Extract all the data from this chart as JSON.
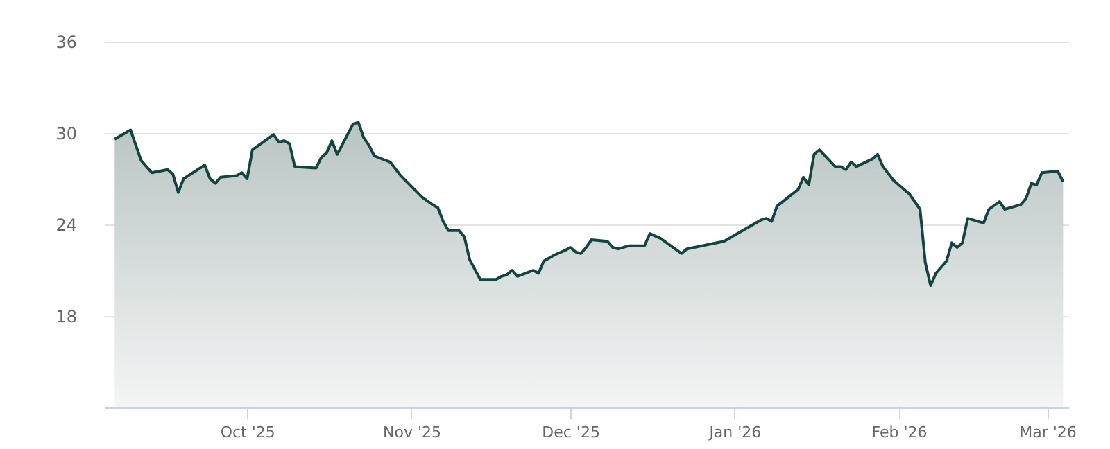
{
  "chart_data": {
    "type": "area",
    "x": [
      "2025-09-06",
      "2025-09-09",
      "2025-09-11",
      "2025-09-13",
      "2025-09-16",
      "2025-09-17",
      "2025-09-18",
      "2025-09-19",
      "2025-09-23",
      "2025-09-24",
      "2025-09-25",
      "2025-09-26",
      "2025-09-29",
      "2025-09-30",
      "2025-10-01",
      "2025-10-02",
      "2025-10-06",
      "2025-10-07",
      "2025-10-08",
      "2025-10-09",
      "2025-10-10",
      "2025-10-14",
      "2025-10-15",
      "2025-10-16",
      "2025-10-17",
      "2025-10-18",
      "2025-10-21",
      "2025-10-22",
      "2025-10-23",
      "2025-10-24",
      "2025-10-25",
      "2025-10-28",
      "2025-10-30",
      "2025-11-01",
      "2025-11-03",
      "2025-11-05",
      "2025-11-06",
      "2025-11-07",
      "2025-11-08",
      "2025-11-10",
      "2025-11-11",
      "2025-11-12",
      "2025-11-14",
      "2025-11-17",
      "2025-11-18",
      "2025-11-19",
      "2025-11-20",
      "2025-11-21",
      "2025-11-24",
      "2025-11-25",
      "2025-11-26",
      "2025-11-28",
      "2025-11-30",
      "2025-12-01",
      "2025-12-02",
      "2025-12-03",
      "2025-12-04",
      "2025-12-05",
      "2025-12-08",
      "2025-12-09",
      "2025-12-10",
      "2025-12-12",
      "2025-12-15",
      "2025-12-16",
      "2025-12-18",
      "2025-12-22",
      "2025-12-23",
      "2025-12-30",
      "2026-01-02",
      "2026-01-06",
      "2026-01-07",
      "2026-01-08",
      "2026-01-09",
      "2026-01-13",
      "2026-01-14",
      "2026-01-15",
      "2026-01-16",
      "2026-01-17",
      "2026-01-20",
      "2026-01-21",
      "2026-01-22",
      "2026-01-23",
      "2026-01-24",
      "2026-01-27",
      "2026-01-28",
      "2026-01-29",
      "2026-01-31",
      "2026-02-03",
      "2026-02-04",
      "2026-02-05",
      "2026-02-06",
      "2026-02-07",
      "2026-02-08",
      "2026-02-10",
      "2026-02-11",
      "2026-02-12",
      "2026-02-13",
      "2026-02-14",
      "2026-02-17",
      "2026-02-18",
      "2026-02-20",
      "2026-02-21",
      "2026-02-24",
      "2026-02-25",
      "2026-02-26",
      "2026-02-27",
      "2026-02-28",
      "2026-03-03",
      "2026-03-04"
    ],
    "series": [
      {
        "color": "#14443f",
        "values": [
          29.6,
          30.2,
          28.2,
          27.4,
          27.6,
          27.3,
          26.1,
          27.0,
          27.9,
          27.0,
          26.7,
          27.1,
          27.2,
          27.4,
          27.0,
          28.9,
          29.9,
          29.4,
          29.5,
          29.3,
          27.8,
          27.7,
          28.4,
          28.7,
          29.5,
          28.6,
          30.6,
          30.7,
          29.7,
          29.2,
          28.5,
          28.1,
          27.2,
          26.5,
          25.8,
          25.3,
          25.1,
          24.2,
          23.6,
          23.6,
          23.2,
          21.7,
          20.4,
          20.4,
          20.6,
          20.7,
          21.0,
          20.6,
          21.0,
          20.8,
          21.6,
          22.0,
          22.3,
          22.5,
          22.2,
          22.1,
          22.5,
          23.0,
          22.9,
          22.5,
          22.4,
          22.6,
          22.6,
          23.4,
          23.1,
          22.1,
          22.4,
          22.9,
          23.5,
          24.3,
          24.4,
          24.2,
          25.2,
          26.3,
          27.1,
          26.6,
          28.6,
          28.9,
          27.8,
          27.8,
          27.6,
          28.1,
          27.8,
          28.3,
          28.6,
          27.8,
          26.9,
          26.0,
          25.5,
          25.0,
          21.5,
          20.0,
          20.8,
          21.6,
          22.8,
          22.5,
          22.8,
          24.4,
          24.1,
          25.0,
          25.5,
          25.0,
          25.3,
          25.7,
          26.7,
          26.6,
          27.4,
          27.5,
          26.8
        ]
      }
    ],
    "xlim": [
      "2025-09-04",
      "2026-03-05"
    ],
    "xticks": [
      {
        "value": "2025-10-01",
        "label": "Oct '25"
      },
      {
        "value": "2025-11-01",
        "label": "Nov '25"
      },
      {
        "value": "2025-12-01",
        "label": "Dec '25"
      },
      {
        "value": "2026-01-01",
        "label": "Jan '26"
      },
      {
        "value": "2026-02-01",
        "label": "Feb '26"
      },
      {
        "value": "2026-03-01",
        "label": "Mar '26"
      }
    ],
    "ylim": [
      12,
      36
    ],
    "yticks": [
      18,
      24,
      30,
      36
    ],
    "grid": "y"
  }
}
